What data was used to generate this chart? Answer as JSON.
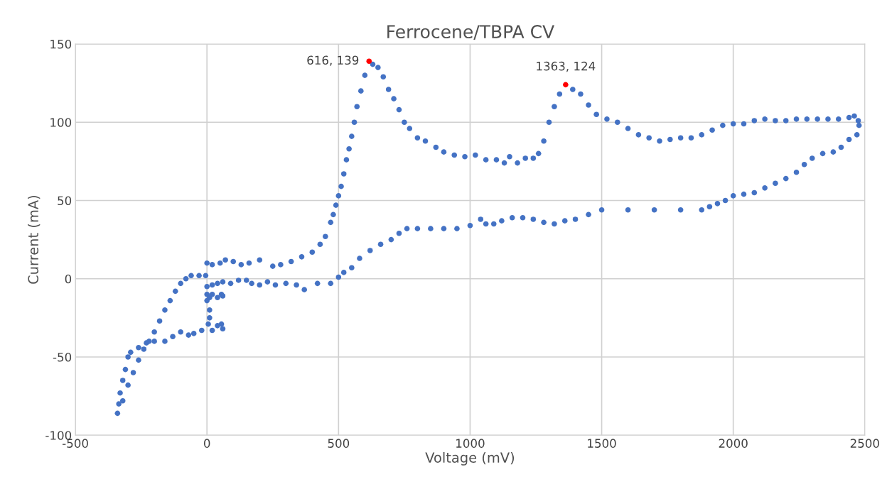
{
  "chart_data": {
    "type": "scatter",
    "title": "Ferrocene/TBPA CV",
    "xlabel": "Voltage (mV)",
    "ylabel": "Current (mA)",
    "xlim": [
      -500,
      2500
    ],
    "xticks": [
      -500,
      0,
      500,
      1000,
      1500,
      2000,
      2500
    ],
    "ylim": [
      -100,
      150
    ],
    "yticks": [
      -100,
      -50,
      0,
      50,
      100,
      150
    ],
    "grid": true,
    "legend": false,
    "marker": "circle",
    "series": [
      {
        "color": "#4472c4",
        "x": [
          0,
          20,
          50,
          70,
          100,
          130,
          160,
          200,
          250,
          280,
          320,
          360,
          400,
          430,
          450,
          470,
          480,
          490,
          500,
          510,
          520,
          530,
          540,
          550,
          560,
          570,
          585,
          600,
          630,
          650,
          670,
          690,
          710,
          730,
          750,
          770,
          800,
          830,
          870,
          900,
          940,
          980,
          1020,
          1060,
          1100,
          1130,
          1150,
          1180,
          1210,
          1240,
          1260,
          1280,
          1300,
          1320,
          1340,
          1390,
          1420,
          1450,
          1480,
          1520,
          1560,
          1600,
          1640,
          1680,
          1720,
          1760,
          1800,
          1840,
          1880,
          1920,
          1960,
          2000,
          2040,
          2080,
          2120,
          2160,
          2200,
          2240,
          2280,
          2320,
          2360,
          2400,
          2440,
          2460,
          2475,
          2478,
          2470,
          2440,
          2410,
          2380,
          2340,
          2300,
          2270,
          2240,
          2200,
          2160,
          2120,
          2080,
          2040,
          2000,
          1970,
          1940,
          1910,
          1880,
          1800,
          1700,
          1600,
          1500,
          1450,
          1400,
          1360,
          1320,
          1280,
          1240,
          1200,
          1160,
          1120,
          1090,
          1060,
          1040,
          1000,
          950,
          900,
          850,
          800,
          760,
          730,
          700,
          660,
          620,
          580,
          550,
          520,
          500,
          470,
          420,
          370,
          340,
          300,
          260,
          230,
          200,
          170,
          150,
          120,
          90,
          60,
          40,
          20,
          0,
          0,
          10,
          20,
          40,
          55,
          60,
          10,
          10,
          5,
          20,
          40,
          55,
          60,
          -20,
          -50,
          -70,
          -100,
          -130,
          -160,
          -200,
          -230,
          -260,
          -290,
          -300,
          -310,
          -320,
          -330,
          -335,
          -340,
          -320,
          -300,
          -280,
          -260,
          -240,
          -220,
          -200,
          -180,
          -160,
          -140,
          -120,
          -100,
          -80,
          -60,
          -30,
          -5,
          0
        ],
        "values": [
          10,
          9,
          10,
          12,
          11,
          9,
          10,
          12,
          8,
          9,
          11,
          14,
          17,
          22,
          27,
          36,
          41,
          47,
          53,
          59,
          67,
          76,
          83,
          91,
          100,
          110,
          120,
          130,
          137,
          135,
          129,
          121,
          115,
          108,
          100,
          96,
          90,
          88,
          84,
          81,
          79,
          78,
          79,
          76,
          76,
          74,
          78,
          74,
          77,
          77,
          80,
          88,
          100,
          110,
          118,
          121,
          118,
          111,
          105,
          102,
          100,
          96,
          92,
          90,
          88,
          89,
          90,
          90,
          92,
          95,
          98,
          99,
          99,
          101,
          102,
          101,
          101,
          102,
          102,
          102,
          102,
          102,
          103,
          104,
          101,
          98,
          92,
          89,
          84,
          81,
          80,
          77,
          73,
          68,
          64,
          61,
          58,
          55,
          54,
          53,
          50,
          48,
          46,
          44,
          44,
          44,
          44,
          44,
          41,
          38,
          37,
          35,
          36,
          38,
          39,
          39,
          37,
          35,
          35,
          38,
          34,
          32,
          32,
          32,
          32,
          32,
          29,
          25,
          22,
          18,
          13,
          7,
          4,
          1,
          -3,
          -3,
          -7,
          -4,
          -3,
          -4,
          -2,
          -4,
          -3,
          -1,
          -1,
          -3,
          -2,
          -3,
          -4,
          -10,
          -14,
          -12,
          -10,
          -12,
          -10,
          -11,
          -20,
          -25,
          -29,
          -33,
          -30,
          -29,
          -32,
          -33,
          -35,
          -36,
          -34,
          -37,
          -40,
          -40,
          -41,
          -44,
          -47,
          -50,
          -58,
          -65,
          -73,
          -80,
          -86,
          -78,
          -68,
          -60,
          -52,
          -45,
          -40,
          -34,
          -27,
          -20,
          -14,
          -8,
          -3,
          0,
          2,
          2,
          2,
          -5
        ]
      },
      {
        "color": "#ff0000",
        "x": [
          616,
          1363
        ],
        "values": [
          139,
          124
        ]
      }
    ],
    "annotations": [
      {
        "text": "616, 139",
        "x": 616,
        "y": 139
      },
      {
        "text": "1363, 124",
        "x": 1363,
        "y": 124
      }
    ]
  }
}
